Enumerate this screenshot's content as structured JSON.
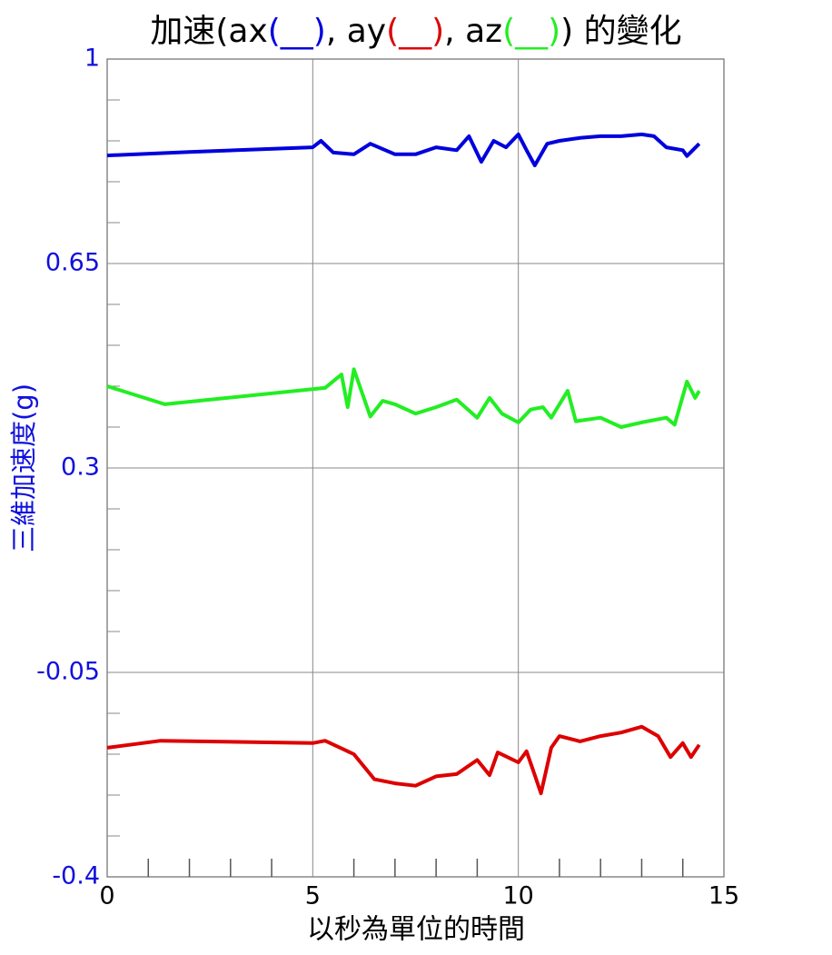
{
  "chart_data": {
    "type": "line",
    "title": [
      "加速(ax",
      "(__)",
      ", ay",
      "(__)",
      ", az",
      "(__)",
      ") 的變化"
    ],
    "xlabel": "以秒為單位的時間",
    "ylabel": "三維加速度(g)",
    "xlim": [
      0,
      15
    ],
    "xticks": [
      0,
      5,
      10,
      15
    ],
    "xminorticks": [
      1,
      2,
      3,
      4,
      6,
      7,
      8,
      9,
      11,
      12,
      13,
      14
    ],
    "ylim": [
      -0.4,
      1
    ],
    "yticks": [
      -0.4,
      -0.05,
      0.3,
      0.65,
      1
    ],
    "yminorticks": [
      -0.33,
      -0.26,
      -0.19,
      -0.12,
      0.02,
      0.09,
      0.16,
      0.23,
      0.37,
      0.44,
      0.51,
      0.58,
      0.72,
      0.79,
      0.86,
      0.93
    ],
    "grid": true,
    "series": [
      {
        "name": "ax",
        "color": "#0000dd",
        "x": [
          0,
          2,
          5,
          5.2,
          5.5,
          6,
          6.4,
          7,
          7.5,
          8,
          8.5,
          8.8,
          9.1,
          9.4,
          9.7,
          10,
          10.2,
          10.4,
          10.7,
          11,
          11.5,
          12,
          12.5,
          13,
          13.3,
          13.6,
          14,
          14.1,
          14.4
        ],
        "values": [
          0.835,
          0.841,
          0.849,
          0.86,
          0.84,
          0.837,
          0.855,
          0.837,
          0.837,
          0.849,
          0.844,
          0.868,
          0.824,
          0.86,
          0.849,
          0.871,
          0.844,
          0.818,
          0.855,
          0.86,
          0.865,
          0.868,
          0.868,
          0.871,
          0.868,
          0.849,
          0.844,
          0.834,
          0.855
        ]
      },
      {
        "name": "ay",
        "color": "#dd0000",
        "x": [
          0,
          1.3,
          5,
          5.3,
          6,
          6.5,
          7,
          7.5,
          8,
          8.5,
          9,
          9.3,
          9.5,
          10,
          10.2,
          10.4,
          10.55,
          10.8,
          11,
          11.5,
          12,
          12.5,
          13,
          13.4,
          13.7,
          14,
          14.2,
          14.4
        ],
        "values": [
          -0.179,
          -0.167,
          -0.171,
          -0.167,
          -0.19,
          -0.233,
          -0.24,
          -0.244,
          -0.228,
          -0.224,
          -0.2,
          -0.226,
          -0.187,
          -0.204,
          -0.185,
          -0.226,
          -0.257,
          -0.179,
          -0.159,
          -0.168,
          -0.159,
          -0.153,
          -0.143,
          -0.159,
          -0.195,
          -0.171,
          -0.195,
          -0.174
        ]
      },
      {
        "name": "az",
        "color": "#22ee22",
        "x": [
          0,
          1.4,
          5,
          5.3,
          5.7,
          5.85,
          6,
          6.4,
          6.7,
          7,
          7.5,
          8,
          8.5,
          9,
          9.3,
          9.6,
          10,
          10.3,
          10.6,
          10.8,
          11.2,
          11.4,
          12,
          12.5,
          13,
          13.6,
          13.8,
          14.1,
          14.3,
          14.4
        ],
        "values": [
          0.44,
          0.409,
          0.435,
          0.437,
          0.46,
          0.404,
          0.469,
          0.388,
          0.415,
          0.409,
          0.393,
          0.404,
          0.417,
          0.386,
          0.42,
          0.393,
          0.378,
          0.4,
          0.404,
          0.386,
          0.432,
          0.38,
          0.386,
          0.37,
          0.378,
          0.386,
          0.374,
          0.448,
          0.42,
          0.432
        ]
      }
    ]
  }
}
